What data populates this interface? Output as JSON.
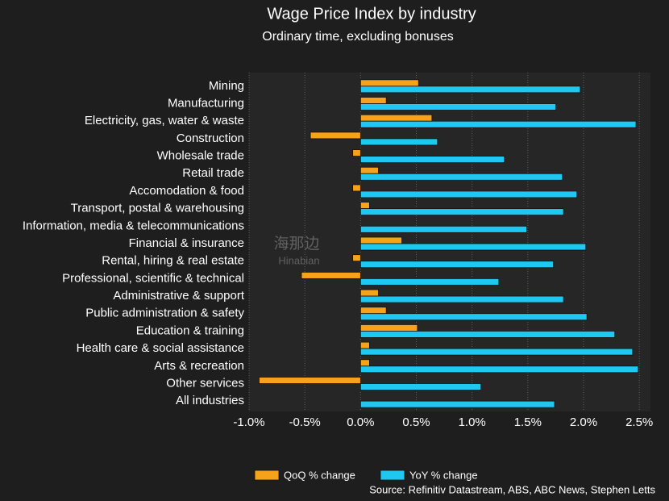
{
  "chart_data": {
    "type": "hbar",
    "title": "Wage Price Index by industry",
    "subtitle": "Ordinary time, excluding bonuses",
    "source": "Source: Refinitiv Datastream, ABS, ABC News, Stephen Letts",
    "watermark": [
      "海那边",
      "Hinabian"
    ],
    "categories": [
      "Mining",
      "Manufacturing",
      "Electricity, gas, water & waste",
      "Construction",
      "Wholesale trade",
      "Retail trade",
      "Accomodation & food",
      "Transport, postal & warehousing",
      "Information, media & telecommunications",
      "Financial & insurance",
      "Rental, hiring & real estate",
      "Professional, scientific & technical",
      "Administrative & support",
      "Public administration & safety",
      "Education & training",
      "Health care & social assistance",
      "Arts & recreation",
      "Other services",
      "All industries"
    ],
    "series": [
      {
        "name": "QoQ % change",
        "color": "#f7a21b",
        "values": [
          0.52,
          0.23,
          0.64,
          -0.45,
          -0.07,
          0.16,
          -0.07,
          0.08,
          0,
          0.37,
          -0.07,
          -0.53,
          0.16,
          0.23,
          0.51,
          0.08,
          0.08,
          -0.91,
          0
        ]
      },
      {
        "name": "YoY % change",
        "color": "#1ec8f0",
        "values": [
          1.97,
          1.75,
          2.47,
          0.69,
          1.29,
          1.81,
          1.94,
          1.82,
          1.49,
          2.02,
          1.73,
          1.24,
          1.82,
          2.03,
          2.28,
          2.44,
          2.49,
          1.08,
          1.74
        ]
      }
    ],
    "xlim": [
      -1.0,
      2.6
    ],
    "xticks": [
      {
        "value": -1.0,
        "label": "-1.0%"
      },
      {
        "value": -0.5,
        "label": "-0.5%"
      },
      {
        "value": 0,
        "label": "0.0%"
      },
      {
        "value": 0.5,
        "label": "0.5%"
      },
      {
        "value": 1.0,
        "label": "1.0%"
      },
      {
        "value": 1.5,
        "label": "1.5%"
      },
      {
        "value": 2.0,
        "label": "2.0%"
      },
      {
        "value": 2.5,
        "label": "2.5%"
      }
    ],
    "grid": true,
    "legend": "bottom"
  }
}
